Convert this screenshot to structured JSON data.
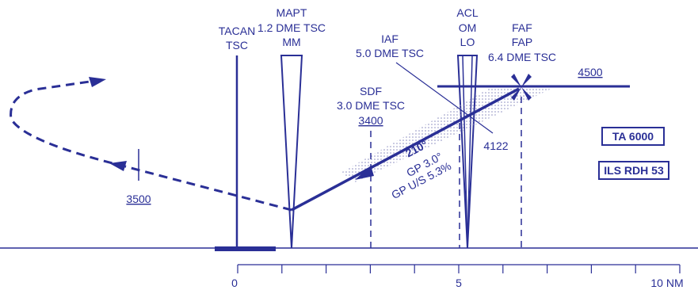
{
  "fixes": {
    "tacan": {
      "line1": "TACAN",
      "line2": "TSC"
    },
    "mapt": {
      "line1": "MAPT",
      "line2": "1.2 DME TSC",
      "line3": "MM"
    },
    "acl": {
      "line1": "ACL",
      "line2": "OM",
      "line3": "LO"
    },
    "iaf": {
      "line1": "IAF",
      "line2": "5.0 DME TSC"
    },
    "faf": {
      "line1": "FAF",
      "line2": "FAP",
      "line3": "6.4 DME TSC"
    },
    "sdf": {
      "line1": "SDF",
      "line2": "3.0 DME TSC",
      "altitude": "3400"
    }
  },
  "altitudes": {
    "intercept": "4500",
    "missed_approach": "3500",
    "om_crossing": "4122"
  },
  "approach": {
    "course": "210°",
    "glidepath": "GP 3.0°",
    "gp_ratio": "GP U/S 5.3%"
  },
  "boxes": {
    "transition_altitude": "TA 6000",
    "ils_rdh": "ILS RDH 53"
  },
  "distance_scale": {
    "labels": [
      "0",
      "5",
      "10 NM"
    ]
  },
  "colors": {
    "ink": "#2a2f96",
    "stipple": "#8a8cc0"
  }
}
